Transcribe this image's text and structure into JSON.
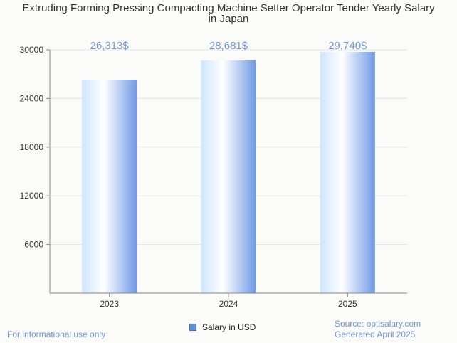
{
  "chart_data": {
    "type": "bar",
    "title_line1": "Extruding Forming Pressing Compacting Machine Setter Operator Tender Yearly Salary",
    "title_line2": "in Japan",
    "categories": [
      "2023",
      "2024",
      "2025"
    ],
    "series": [
      {
        "name": "Salary in USD",
        "values": [
          26313,
          28681,
          29740
        ],
        "data_labels": [
          "26,313$",
          "28,681$",
          "29,740$"
        ]
      }
    ],
    "y_ticks": [
      6000,
      12000,
      18000,
      24000,
      30000
    ],
    "ylim": [
      0,
      30000
    ],
    "grid": true,
    "legend_position": "bottom-center",
    "colors": {
      "bar_light": "#cfe6ff",
      "bar_white": "#ffffff",
      "bar_dark": "#6f9ae6",
      "data_label": "#6f95d4",
      "grid": "#e3e3e3",
      "axis": "#888888"
    }
  },
  "footer": {
    "left": "For informational use only",
    "source": "Source: optisalary.com",
    "generated": "Generated April 2025"
  }
}
